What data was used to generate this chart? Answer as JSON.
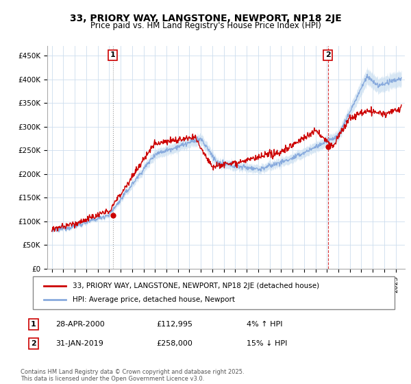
{
  "title": "33, PRIORY WAY, LANGSTONE, NEWPORT, NP18 2JE",
  "subtitle": "Price paid vs. HM Land Registry's House Price Index (HPI)",
  "legend_line1": "33, PRIORY WAY, LANGSTONE, NEWPORT, NP18 2JE (detached house)",
  "legend_line2": "HPI: Average price, detached house, Newport",
  "annotation1_date": "28-APR-2000",
  "annotation1_price": "£112,995",
  "annotation1_hpi": "4% ↑ HPI",
  "annotation2_date": "31-JAN-2019",
  "annotation2_price": "£258,000",
  "annotation2_hpi": "15% ↓ HPI",
  "footer": "Contains HM Land Registry data © Crown copyright and database right 2025.\nThis data is licensed under the Open Government Licence v3.0.",
  "red_color": "#cc0000",
  "blue_color": "#88aadd",
  "blue_fill": "#c8ddf0",
  "vline1_color": "#aaaaaa",
  "vline2_color": "#cc4444",
  "ann_box_color": "#cc0000",
  "ylim_min": 0,
  "ylim_max": 470000,
  "ytick_values": [
    0,
    50000,
    100000,
    150000,
    200000,
    250000,
    300000,
    350000,
    400000,
    450000
  ],
  "ytick_labels": [
    "£0",
    "£50K",
    "£100K",
    "£150K",
    "£200K",
    "£250K",
    "£300K",
    "£350K",
    "£400K",
    "£450K"
  ],
  "purchase1_year": 2000.32,
  "purchase1_price": 112995,
  "purchase2_year": 2019.08,
  "purchase2_price": 258000,
  "xlim_min": 1994.6,
  "xlim_max": 2025.8
}
